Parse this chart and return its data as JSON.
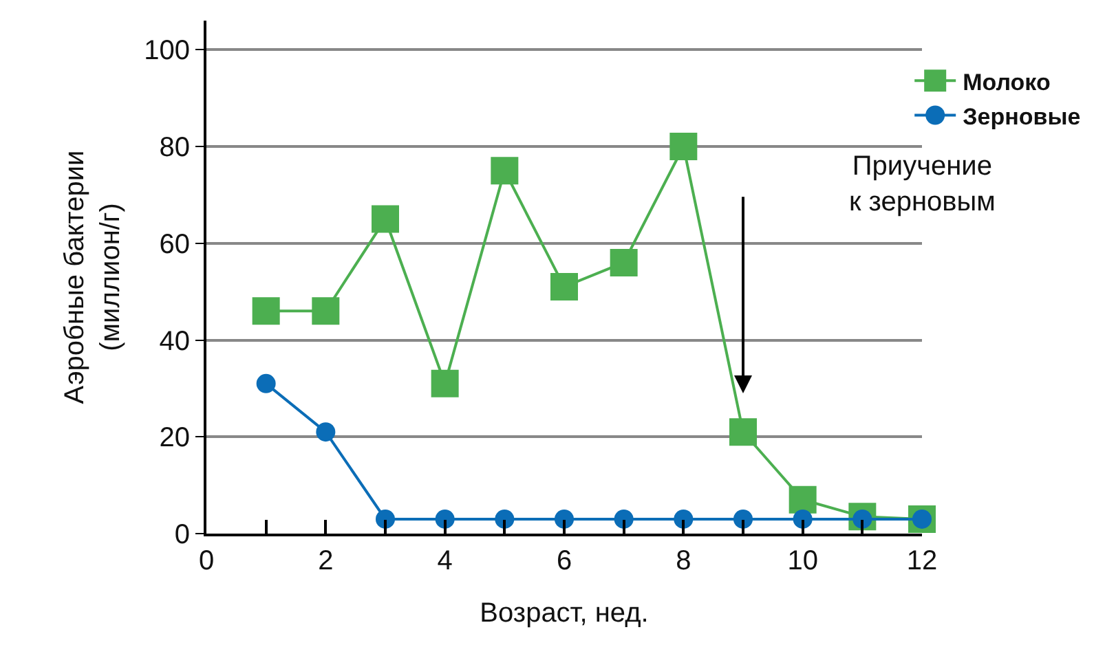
{
  "chart_data": {
    "type": "line",
    "xlabel": "Возраст, нед.",
    "ylabel": "Аэробные бактерии\n(миллион/г)",
    "x": [
      1,
      2,
      3,
      4,
      5,
      6,
      7,
      8,
      9,
      10,
      11,
      12
    ],
    "series": [
      {
        "name": "Молоко",
        "color": "#4caf50",
        "marker": "square",
        "values": [
          46,
          46,
          65,
          31,
          75,
          51,
          56,
          80,
          21,
          7,
          3.5,
          3
        ]
      },
      {
        "name": "Зерновые",
        "color": "#0b6db7",
        "marker": "circle",
        "values": [
          31,
          21,
          3,
          3,
          3,
          3,
          3,
          3,
          3,
          3,
          3,
          3
        ]
      }
    ],
    "xlim": [
      0,
      12
    ],
    "xticks": [
      0,
      {
        "value": 1,
        "label": null
      },
      2,
      {
        "value": 3,
        "label": null
      },
      4,
      {
        "value": 5,
        "label": null
      },
      6,
      {
        "value": 7,
        "label": null
      },
      8,
      {
        "value": 9,
        "label": null
      },
      10,
      {
        "value": 11,
        "label": null
      },
      12
    ],
    "ylim": [
      0,
      106
    ],
    "yticks": [
      0,
      20,
      40,
      60,
      80,
      100
    ],
    "grid": "y",
    "legend": "top right",
    "annotations": [
      "Приучение\nк зерновым"
    ]
  }
}
